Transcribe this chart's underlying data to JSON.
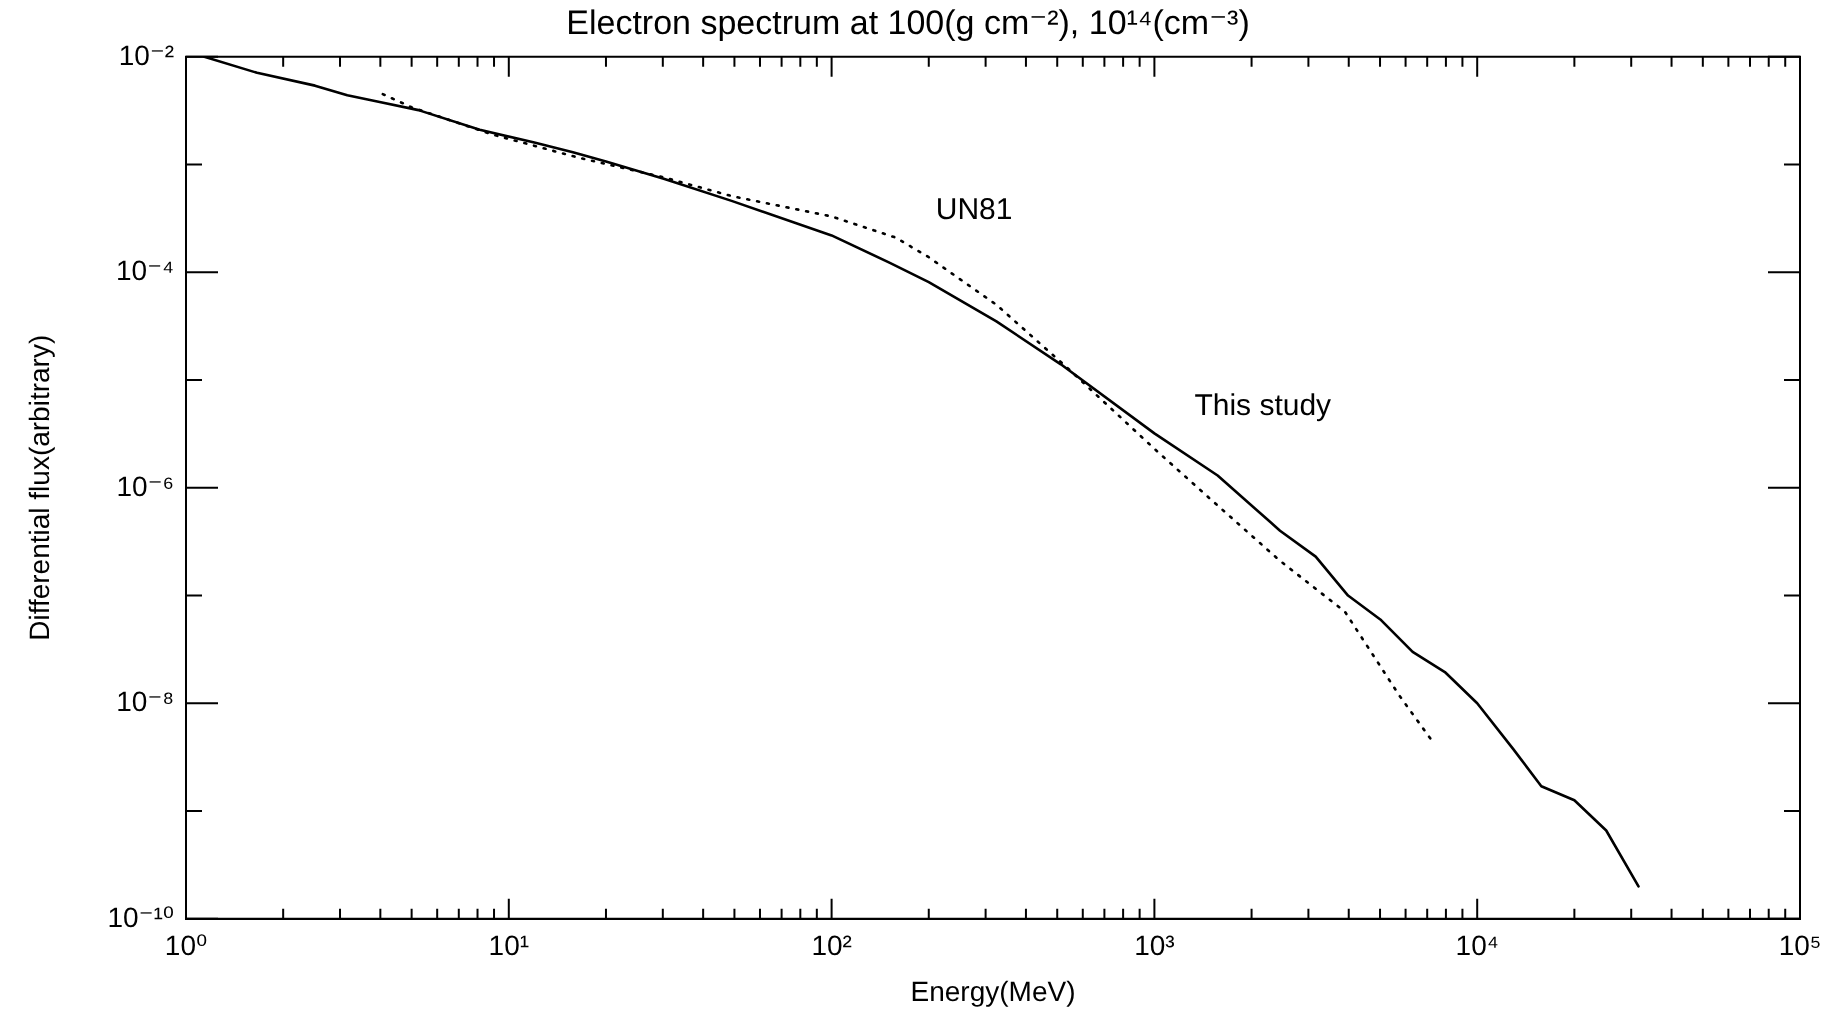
{
  "chart_data": {
    "type": "line",
    "title": "Electron spectrum at 100(g cm⁻²), 10¹⁴(cm⁻³)",
    "xlabel": "Energy(MeV)",
    "ylabel": "Differential flux(arbitrary)",
    "log": "xy",
    "grid": false,
    "legend": false,
    "marker": "none",
    "xlim": [
      1,
      100000
    ],
    "ylim": [
      1e-10,
      0.01
    ],
    "xticks": [
      {
        "value": 1,
        "label": "10⁰"
      },
      {
        "value": 2,
        "label": null
      },
      {
        "value": 3,
        "label": null
      },
      {
        "value": 4,
        "label": null
      },
      {
        "value": 5,
        "label": null
      },
      {
        "value": 6,
        "label": null
      },
      {
        "value": 7,
        "label": null
      },
      {
        "value": 8,
        "label": null
      },
      {
        "value": 9,
        "label": null
      },
      {
        "value": 10,
        "label": "10¹"
      },
      {
        "value": 20,
        "label": null
      },
      {
        "value": 30,
        "label": null
      },
      {
        "value": 40,
        "label": null
      },
      {
        "value": 50,
        "label": null
      },
      {
        "value": 60,
        "label": null
      },
      {
        "value": 70,
        "label": null
      },
      {
        "value": 80,
        "label": null
      },
      {
        "value": 90,
        "label": null
      },
      {
        "value": 100,
        "label": "10²"
      },
      {
        "value": 200,
        "label": null
      },
      {
        "value": 300,
        "label": null
      },
      {
        "value": 400,
        "label": null
      },
      {
        "value": 500,
        "label": null
      },
      {
        "value": 600,
        "label": null
      },
      {
        "value": 700,
        "label": null
      },
      {
        "value": 800,
        "label": null
      },
      {
        "value": 900,
        "label": null
      },
      {
        "value": 1000,
        "label": "10³"
      },
      {
        "value": 2000,
        "label": null
      },
      {
        "value": 3000,
        "label": null
      },
      {
        "value": 4000,
        "label": null
      },
      {
        "value": 5000,
        "label": null
      },
      {
        "value": 6000,
        "label": null
      },
      {
        "value": 7000,
        "label": null
      },
      {
        "value": 8000,
        "label": null
      },
      {
        "value": 9000,
        "label": null
      },
      {
        "value": 10000,
        "label": "10⁴"
      },
      {
        "value": 20000,
        "label": null
      },
      {
        "value": 30000,
        "label": null
      },
      {
        "value": 40000,
        "label": null
      },
      {
        "value": 50000,
        "label": null
      },
      {
        "value": 60000,
        "label": null
      },
      {
        "value": 70000,
        "label": null
      },
      {
        "value": 80000,
        "label": null
      },
      {
        "value": 90000,
        "label": null
      },
      {
        "value": 100000,
        "label": "10⁵"
      }
    ],
    "yticks": [
      {
        "value": 1e-10,
        "label": "10⁻¹⁰"
      },
      {
        "value": 1e-09,
        "label": null
      },
      {
        "value": 1e-08,
        "label": "10⁻⁸"
      },
      {
        "value": 1e-07,
        "label": null
      },
      {
        "value": 1e-06,
        "label": "10⁻⁶"
      },
      {
        "value": 1e-05,
        "label": null
      },
      {
        "value": 0.0001,
        "label": "10⁻⁴"
      },
      {
        "value": 0.001,
        "label": null
      },
      {
        "value": 0.01,
        "label": "10⁻²"
      }
    ],
    "series": [
      {
        "color": "#000000",
        "line_style": "solid",
        "x": [
          1.14,
          1.66,
          2.51,
          3.16,
          3.98,
          5.25,
          8.13,
          12,
          15.8,
          20,
          30.2,
          49,
          100,
          151,
          200,
          324,
          513,
          1000,
          1570,
          2450,
          3160,
          3980,
          5010,
          6310,
          7940,
          10000,
          12900,
          15800,
          20000,
          25100,
          31600
        ],
        "values": [
          0.01,
          0.0071,
          0.0054,
          0.0044,
          0.0038,
          0.0032,
          0.0021,
          0.0016,
          0.0013,
          0.00107,
          0.00074,
          0.00046,
          0.00022,
          0.000123,
          8.1e-05,
          3.5e-05,
          1.4e-05,
          3.2e-06,
          1.3e-06,
          4e-07,
          2.3e-07,
          1e-07,
          6e-08,
          3e-08,
          1.95e-08,
          1e-08,
          3.8e-09,
          1.7e-09,
          1.26e-09,
          6.6e-10,
          2e-10
        ]
      },
      {
        "color": "#000000",
        "line_style": "dotted",
        "x": [
          4.07,
          5,
          8.9,
          16.6,
          30.2,
          49,
          100,
          158,
          200,
          324,
          537,
          1000,
          1510,
          2450,
          3890,
          5750,
          7240
        ],
        "values": [
          0.0045,
          0.0034,
          0.0019,
          0.00115,
          0.00076,
          0.00051,
          0.00033,
          0.00021,
          0.000138,
          5e-05,
          1.3e-05,
          2.3e-06,
          7.6e-07,
          2.1e-07,
          7.1e-08,
          1.17e-08,
          4.5e-09
        ]
      }
    ],
    "annotations": [
      {
        "text": "UN81",
        "x": 158,
        "y": 0.00021
      },
      {
        "text": "This study",
        "x": 1000,
        "y": 3.2e-06
      }
    ]
  }
}
